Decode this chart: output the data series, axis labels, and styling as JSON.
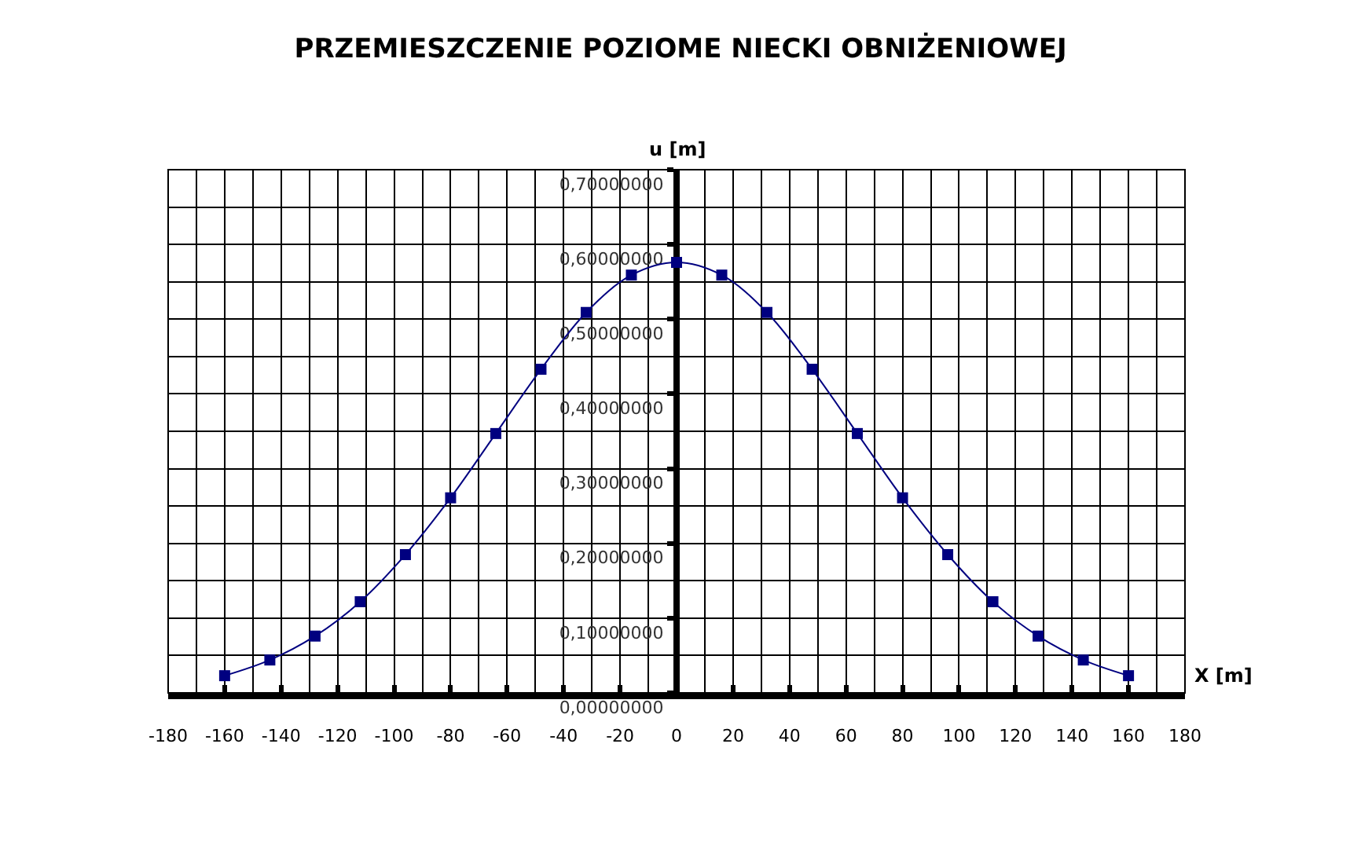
{
  "chart_data": {
    "type": "line",
    "title": "PRZEMIESZCZENIE POZIOME NIECKI OBNIŻENIOWEJ",
    "xlabel": "X [m]",
    "ylabel": "u [m]",
    "x": [
      -160,
      -144,
      -128,
      -112,
      -96,
      -80,
      -64,
      -48,
      -32,
      -16,
      0,
      16,
      32,
      48,
      64,
      80,
      96,
      112,
      128,
      144,
      160
    ],
    "series": [
      {
        "color": "#000080",
        "values": [
          0.023,
          0.044,
          0.076,
          0.122,
          0.185,
          0.261,
          0.347,
          0.433,
          0.509,
          0.559,
          0.576,
          0.559,
          0.509,
          0.433,
          0.347,
          0.261,
          0.185,
          0.122,
          0.076,
          0.044,
          0.023
        ]
      }
    ],
    "xlim": [
      -180,
      180
    ],
    "xticks": [
      -180,
      -160,
      -140,
      -120,
      -100,
      -80,
      -60,
      -40,
      -20,
      0,
      20,
      40,
      60,
      80,
      100,
      120,
      140,
      160,
      180
    ],
    "ylim": [
      0,
      0.7
    ],
    "yticks": [
      {
        "value": 0,
        "label": "0,00000000"
      },
      {
        "value": 0.1,
        "label": "0,10000000"
      },
      {
        "value": 0.2,
        "label": "0,20000000"
      },
      {
        "value": 0.3,
        "label": "0,30000000"
      },
      {
        "value": 0.4,
        "label": "0,40000000"
      },
      {
        "value": 0.5,
        "label": "0,50000000"
      },
      {
        "value": 0.6,
        "label": "0,60000000"
      },
      {
        "value": 0.7,
        "label": "0,70000000"
      }
    ],
    "grid": true,
    "marker": "square",
    "line_style": "solid"
  }
}
